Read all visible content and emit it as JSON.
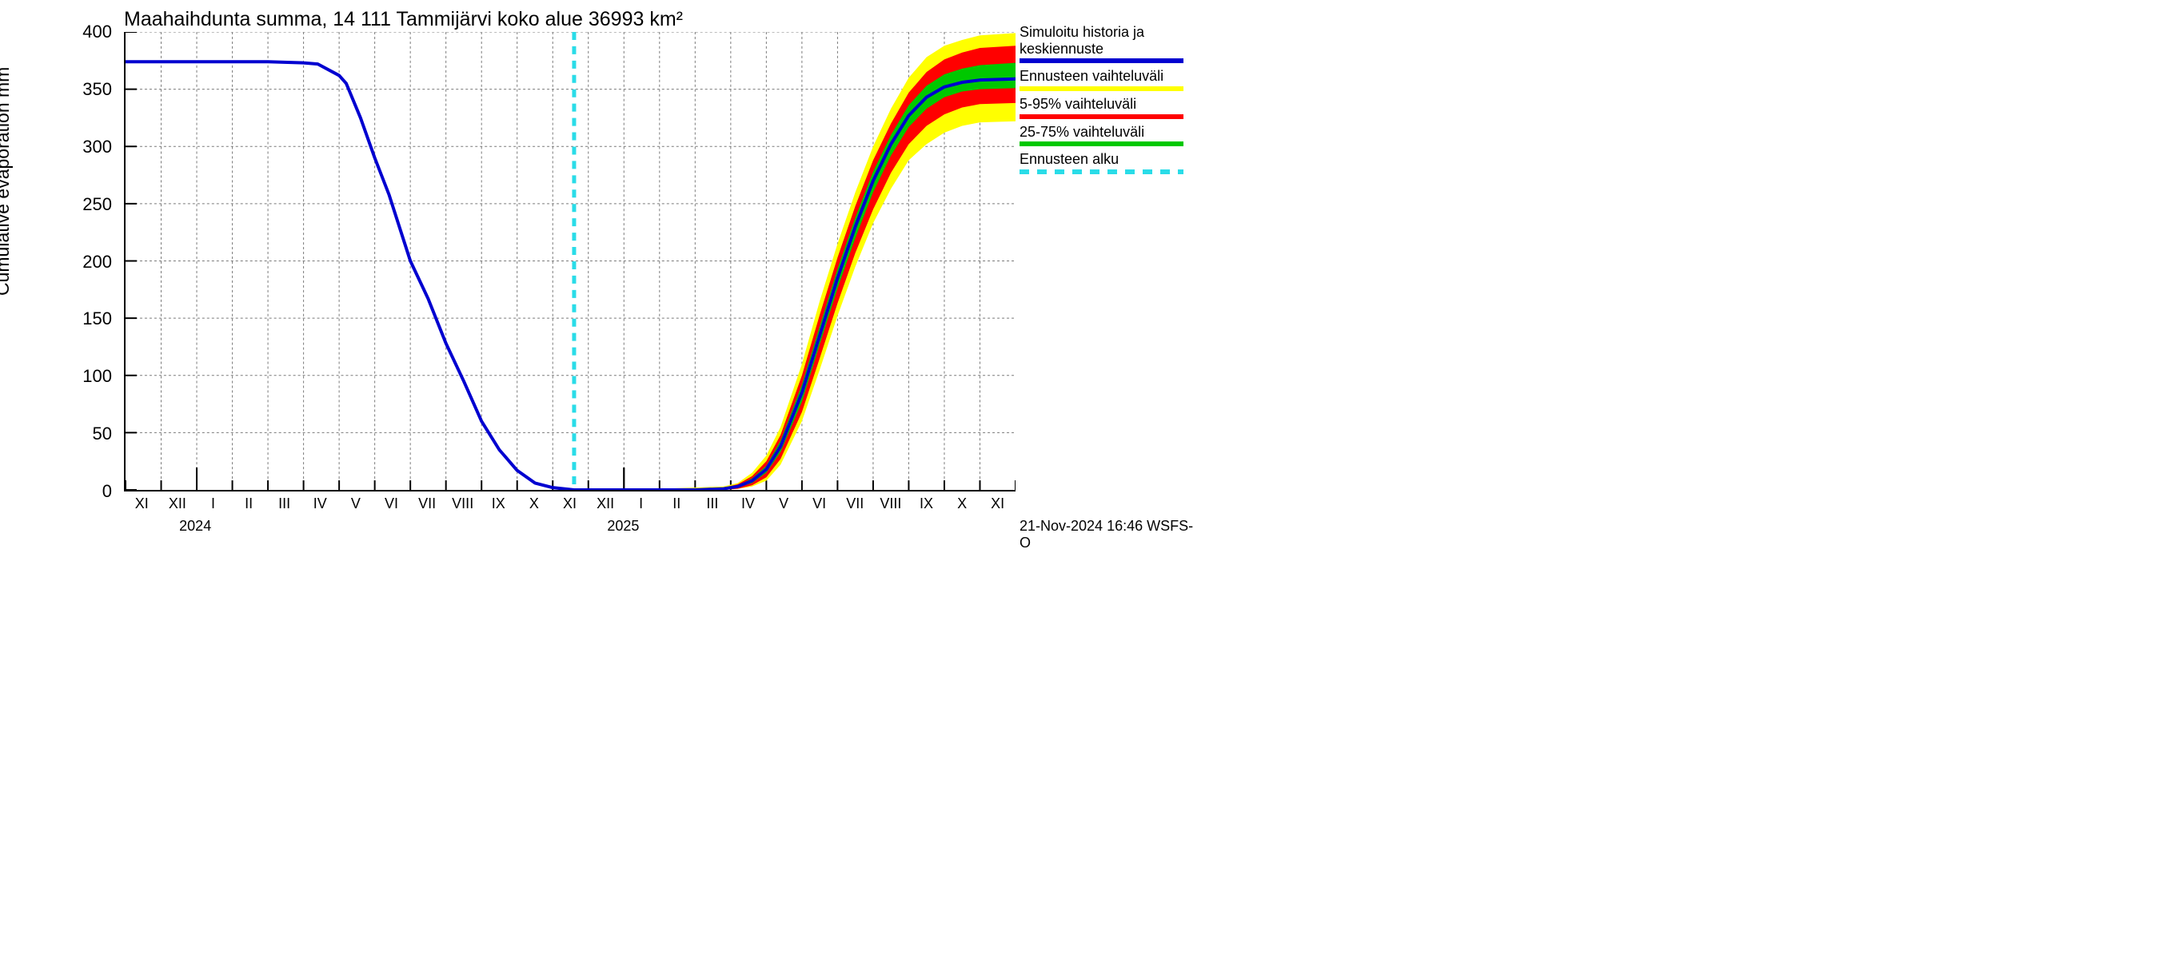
{
  "chart": {
    "type": "line-with-uncertainty-bands",
    "title": "Maahaihdunta summa, 14 111 Tammijärvi koko alue 36993 km²",
    "y_axis_label": "Cumulative evaporation   mm",
    "title_fontsize": 26,
    "axis_label_fontsize": 23,
    "tick_fontsize": 22,
    "month_tick_fontsize": 18,
    "background_color": "#ffffff",
    "text_color": "#000000",
    "axis_color": "#000000",
    "grid_color": "#7a7a7a",
    "grid_dash": "3,3",
    "xlim": [
      0,
      25
    ],
    "ylim": [
      0,
      400
    ],
    "ytick_step": 50,
    "y_ticks": [
      0,
      50,
      100,
      150,
      200,
      250,
      300,
      350,
      400
    ],
    "x_tick_labels": [
      "XI",
      "XII",
      "I",
      "II",
      "III",
      "IV",
      "V",
      "VI",
      "VII",
      "VIII",
      "IX",
      "X",
      "XI",
      "XII",
      "I",
      "II",
      "III",
      "IV",
      "V",
      "VI",
      "VII",
      "VIII",
      "IX",
      "X",
      "XI"
    ],
    "x_year_labels": [
      {
        "label": "2024",
        "at_index": 2.0
      },
      {
        "label": "2025",
        "at_index": 14.0
      }
    ],
    "forecast_start_index": 12.6,
    "colors": {
      "main_line": "#0000d0",
      "forecast_start_line": "#2adce8",
      "band_outer": "#ffff00",
      "band_mid": "#ff0000",
      "band_inner": "#00c800"
    },
    "line_width_main": 4,
    "line_width_dashed": 5,
    "series": {
      "main": [
        [
          0,
          374
        ],
        [
          1,
          374
        ],
        [
          2,
          374
        ],
        [
          3,
          374
        ],
        [
          4,
          374
        ],
        [
          5,
          373
        ],
        [
          5.4,
          372
        ],
        [
          6,
          362
        ],
        [
          6.2,
          355
        ],
        [
          6.6,
          325
        ],
        [
          7,
          290
        ],
        [
          7.4,
          258
        ],
        [
          8,
          200
        ],
        [
          8.5,
          167
        ],
        [
          9,
          128
        ],
        [
          9.5,
          95
        ],
        [
          10,
          60
        ],
        [
          10.5,
          35
        ],
        [
          11,
          17
        ],
        [
          11.5,
          6
        ],
        [
          12,
          2
        ],
        [
          12.6,
          0
        ],
        [
          13,
          0
        ],
        [
          14,
          0
        ],
        [
          15,
          0
        ],
        [
          16,
          0
        ],
        [
          16.8,
          1
        ],
        [
          17.2,
          3
        ],
        [
          17.6,
          8
        ],
        [
          18,
          18
        ],
        [
          18.4,
          38
        ],
        [
          19,
          85
        ],
        [
          19.5,
          135
        ],
        [
          20,
          185
        ],
        [
          20.5,
          230
        ],
        [
          21,
          270
        ],
        [
          21.5,
          302
        ],
        [
          22,
          327
        ],
        [
          22.5,
          343
        ],
        [
          23,
          352
        ],
        [
          23.5,
          356
        ],
        [
          24,
          358
        ],
        [
          25,
          359
        ]
      ],
      "band_outer_upper": [
        [
          12.6,
          0
        ],
        [
          13,
          0
        ],
        [
          14,
          1
        ],
        [
          15,
          1
        ],
        [
          16,
          2
        ],
        [
          16.8,
          3
        ],
        [
          17.2,
          6
        ],
        [
          17.6,
          15
        ],
        [
          18,
          30
        ],
        [
          18.4,
          55
        ],
        [
          19,
          110
        ],
        [
          19.5,
          165
        ],
        [
          20,
          215
        ],
        [
          20.5,
          260
        ],
        [
          21,
          300
        ],
        [
          21.5,
          333
        ],
        [
          22,
          360
        ],
        [
          22.5,
          378
        ],
        [
          23,
          388
        ],
        [
          23.5,
          393
        ],
        [
          24,
          397
        ],
        [
          25,
          399
        ]
      ],
      "band_outer_lower": [
        [
          12.6,
          0
        ],
        [
          13,
          0
        ],
        [
          14,
          0
        ],
        [
          15,
          0
        ],
        [
          16,
          0
        ],
        [
          16.8,
          0
        ],
        [
          17.2,
          1
        ],
        [
          17.6,
          3
        ],
        [
          18,
          8
        ],
        [
          18.4,
          22
        ],
        [
          19,
          60
        ],
        [
          19.5,
          105
        ],
        [
          20,
          152
        ],
        [
          20.5,
          195
        ],
        [
          21,
          233
        ],
        [
          21.5,
          263
        ],
        [
          22,
          288
        ],
        [
          22.5,
          302
        ],
        [
          23,
          312
        ],
        [
          23.5,
          318
        ],
        [
          24,
          321
        ],
        [
          25,
          322
        ]
      ],
      "band_mid_upper": [
        [
          12.6,
          0
        ],
        [
          13,
          0
        ],
        [
          14,
          1
        ],
        [
          15,
          1
        ],
        [
          16,
          1
        ],
        [
          16.8,
          2
        ],
        [
          17.2,
          5
        ],
        [
          17.6,
          12
        ],
        [
          18,
          25
        ],
        [
          18.4,
          48
        ],
        [
          19,
          100
        ],
        [
          19.5,
          153
        ],
        [
          20,
          203
        ],
        [
          20.5,
          248
        ],
        [
          21,
          288
        ],
        [
          21.5,
          320
        ],
        [
          22,
          347
        ],
        [
          22.5,
          365
        ],
        [
          23,
          376
        ],
        [
          23.5,
          382
        ],
        [
          24,
          386
        ],
        [
          25,
          388
        ]
      ],
      "band_mid_lower": [
        [
          12.6,
          0
        ],
        [
          13,
          0
        ],
        [
          14,
          0
        ],
        [
          15,
          0
        ],
        [
          16,
          0
        ],
        [
          16.8,
          0
        ],
        [
          17.2,
          1
        ],
        [
          17.6,
          4
        ],
        [
          18,
          11
        ],
        [
          18.4,
          27
        ],
        [
          19,
          68
        ],
        [
          19.5,
          115
        ],
        [
          20,
          163
        ],
        [
          20.5,
          207
        ],
        [
          21,
          245
        ],
        [
          21.5,
          277
        ],
        [
          22,
          302
        ],
        [
          22.5,
          318
        ],
        [
          23,
          328
        ],
        [
          23.5,
          334
        ],
        [
          24,
          337
        ],
        [
          25,
          338
        ]
      ],
      "band_inner_upper": [
        [
          12.6,
          0
        ],
        [
          13,
          0
        ],
        [
          14,
          0
        ],
        [
          15,
          0
        ],
        [
          16,
          1
        ],
        [
          16.8,
          2
        ],
        [
          17.2,
          4
        ],
        [
          17.6,
          10
        ],
        [
          18,
          21
        ],
        [
          18.4,
          43
        ],
        [
          19,
          92
        ],
        [
          19.5,
          143
        ],
        [
          20,
          193
        ],
        [
          20.5,
          238
        ],
        [
          21,
          278
        ],
        [
          21.5,
          310
        ],
        [
          22,
          336
        ],
        [
          22.5,
          353
        ],
        [
          23,
          363
        ],
        [
          23.5,
          368
        ],
        [
          24,
          371
        ],
        [
          25,
          373
        ]
      ],
      "band_inner_lower": [
        [
          12.6,
          0
        ],
        [
          13,
          0
        ],
        [
          14,
          0
        ],
        [
          15,
          0
        ],
        [
          16,
          0
        ],
        [
          16.8,
          0
        ],
        [
          17.2,
          2
        ],
        [
          17.6,
          6
        ],
        [
          18,
          15
        ],
        [
          18.4,
          33
        ],
        [
          19,
          77
        ],
        [
          19.5,
          127
        ],
        [
          20,
          176
        ],
        [
          20.5,
          220
        ],
        [
          21,
          260
        ],
        [
          21.5,
          292
        ],
        [
          22,
          317
        ],
        [
          22.5,
          333
        ],
        [
          23,
          343
        ],
        [
          23.5,
          348
        ],
        [
          24,
          350
        ],
        [
          25,
          351
        ]
      ]
    }
  },
  "legend": {
    "items": [
      {
        "label": "Simuloitu historia ja keskiennuste",
        "swatch_type": "solid",
        "color": "#0000d0"
      },
      {
        "label": "Ennusteen vaihteluväli",
        "swatch_type": "solid",
        "color": "#ffff00"
      },
      {
        "label": "5-95% vaihteluväli",
        "swatch_type": "solid",
        "color": "#ff0000"
      },
      {
        "label": "25-75% vaihteluväli",
        "swatch_type": "solid",
        "color": "#00c800"
      },
      {
        "label": "Ennusteen alku",
        "swatch_type": "dashed",
        "color": "#2adce8"
      }
    ]
  },
  "footer": {
    "text": "21-Nov-2024 16:46 WSFS-O"
  }
}
